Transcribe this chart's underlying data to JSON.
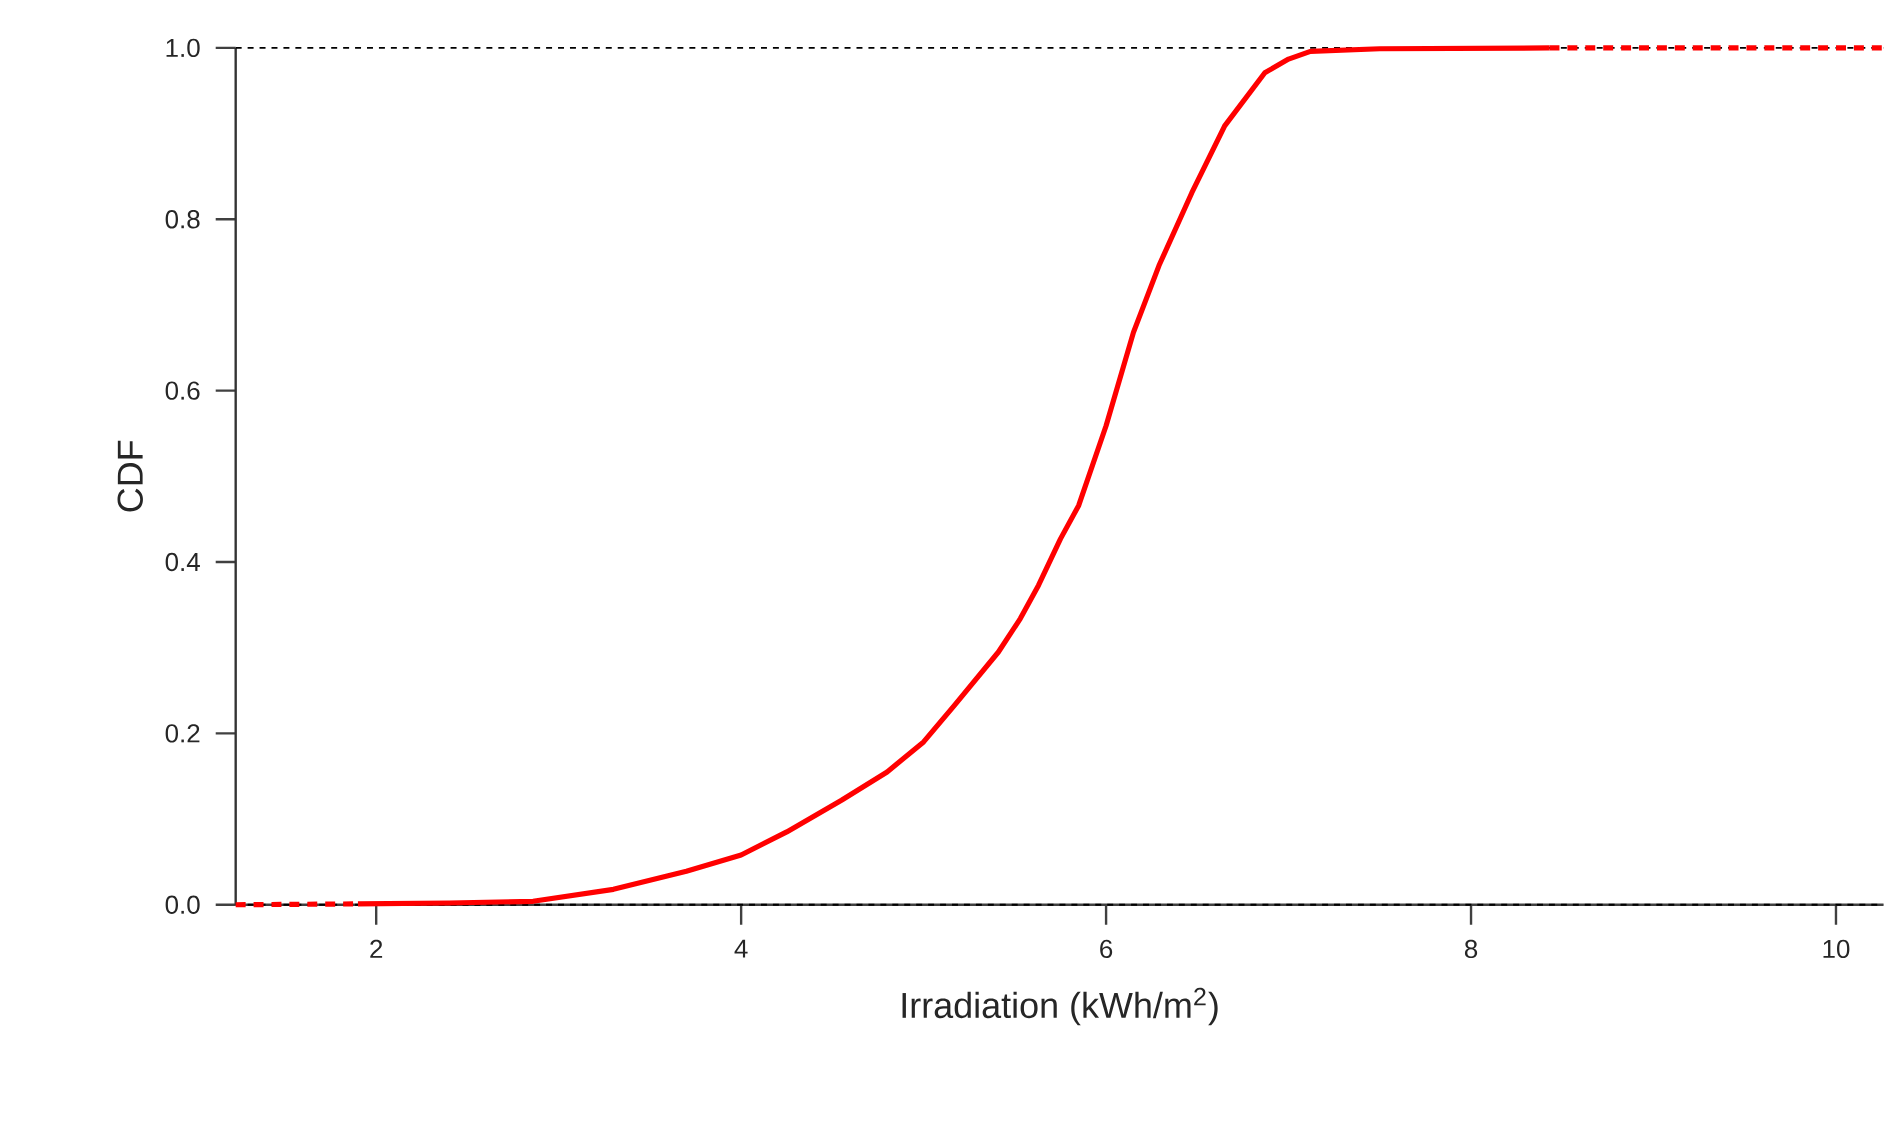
{
  "chart_data": {
    "type": "line",
    "xlabel": "Irradiation (kWh/m$^{2}$)",
    "ylabel": "CDF",
    "xlim": [
      1.23,
      10.26
    ],
    "ylim": [
      0,
      1
    ],
    "xticks": [
      2,
      4,
      6,
      8,
      10
    ],
    "yticks": [
      {
        "value": 0,
        "label": "0.0"
      },
      {
        "value": 0.2,
        "label": "0.2"
      },
      {
        "value": 0.4,
        "label": "0.4"
      },
      {
        "value": 0.6,
        "label": "0.6"
      },
      {
        "value": 0.8,
        "label": "0.8"
      },
      {
        "value": 1,
        "label": "1.0"
      }
    ],
    "series": [
      {
        "color": "#ff0000",
        "line_style": "solid",
        "x": [
          1.9,
          2.4,
          2.86,
          3.3,
          3.7,
          4.0,
          4.25,
          4.55,
          4.8,
          5.0,
          5.17,
          5.41,
          5.53,
          5.63,
          5.75,
          5.85,
          6.0,
          6.15,
          6.29,
          6.47,
          6.65,
          6.87,
          7.0,
          7.12,
          7.5,
          8.43
        ],
        "values": [
          0.001,
          0.002,
          0.004,
          0.018,
          0.039,
          0.058,
          0.085,
          0.122,
          0.155,
          0.19,
          0.233,
          0.295,
          0.334,
          0.373,
          0.427,
          0.466,
          0.559,
          0.668,
          0.746,
          0.831,
          0.909,
          0.971,
          0.987,
          0.996,
          0.999,
          1.0
        ]
      },
      {
        "color": "#ff0000",
        "line_style": "dashed",
        "x": [
          1.23,
          1.9,
          5.0,
          8.43,
          10.26
        ],
        "values": [
          0,
          0.001,
          null,
          1.0,
          1.0
        ]
      }
    ],
    "ref_lines": [
      {
        "axis": "y",
        "value": 1,
        "color": "#000000",
        "line_style": "dashed"
      },
      {
        "axis": "y",
        "value": 0,
        "color": "#000000",
        "line_style": "dashed"
      }
    ]
  }
}
